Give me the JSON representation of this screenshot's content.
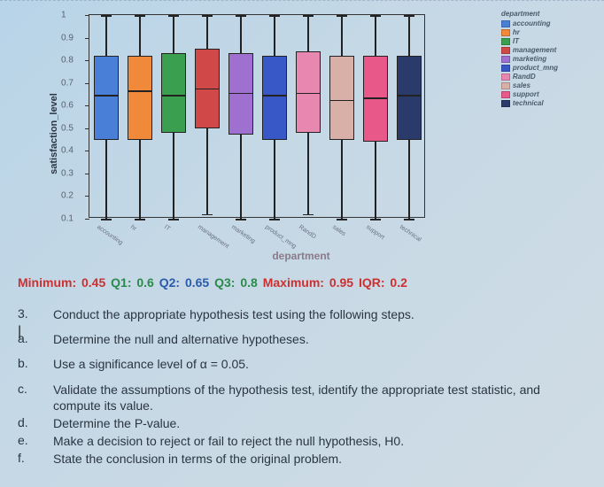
{
  "chart": {
    "type": "boxplot",
    "y_label": "satisfaction_level",
    "x_label": "department",
    "ylim": [
      0.1,
      1.0
    ],
    "yticks": [
      "0.1",
      "0.2",
      "0.3",
      "0.4",
      "0.5",
      "0.6",
      "0.7",
      "0.8",
      "0.9",
      "1"
    ],
    "categories": [
      "accounting",
      "hr",
      "IT",
      "management",
      "marketing",
      "product_mng",
      "RandD",
      "sales",
      "support",
      "technical"
    ],
    "colors": [
      "#4a7fd8",
      "#f08a3a",
      "#3aa050",
      "#d04848",
      "#a070d0",
      "#3858c8",
      "#e888b0",
      "#d8b0a8",
      "#e85888",
      "#2a3a6a"
    ],
    "boxes": [
      {
        "q1": 0.45,
        "q2": 0.65,
        "q3": 0.82,
        "lo": 0.1,
        "hi": 1.0
      },
      {
        "q1": 0.45,
        "q2": 0.67,
        "q3": 0.82,
        "lo": 0.1,
        "hi": 1.0
      },
      {
        "q1": 0.48,
        "q2": 0.65,
        "q3": 0.83,
        "lo": 0.1,
        "hi": 1.0
      },
      {
        "q1": 0.5,
        "q2": 0.68,
        "q3": 0.85,
        "lo": 0.12,
        "hi": 1.0
      },
      {
        "q1": 0.47,
        "q2": 0.66,
        "q3": 0.83,
        "lo": 0.1,
        "hi": 1.0
      },
      {
        "q1": 0.45,
        "q2": 0.65,
        "q3": 0.82,
        "lo": 0.1,
        "hi": 1.0
      },
      {
        "q1": 0.48,
        "q2": 0.66,
        "q3": 0.84,
        "lo": 0.12,
        "hi": 1.0
      },
      {
        "q1": 0.45,
        "q2": 0.63,
        "q3": 0.82,
        "lo": 0.1,
        "hi": 1.0
      },
      {
        "q1": 0.44,
        "q2": 0.64,
        "q3": 0.82,
        "lo": 0.1,
        "hi": 1.0
      },
      {
        "q1": 0.45,
        "q2": 0.65,
        "q3": 0.82,
        "lo": 0.1,
        "hi": 1.0
      }
    ],
    "legend_title": "department",
    "background_color": "#c5d8e5"
  },
  "stats": {
    "min_label": "Minimum:",
    "min_val": "0.45",
    "q1_label": "Q1:",
    "q1_val": "0.6",
    "q2_label": "Q2:",
    "q2_val": "0.65",
    "q3_label": "Q3:",
    "q3_val": "0.8",
    "max_label": "Maximum:",
    "max_val": "0.95",
    "iqr_label": "IQR:",
    "iqr_val": "0.2"
  },
  "question": {
    "num": "3.",
    "text": "Conduct the appropriate hypothesis test using the following steps.",
    "items": [
      {
        "k": "a.",
        "t": "Determine the null and alternative hypotheses."
      },
      {
        "k": "b.",
        "t": "Use a significance level of α = 0.05."
      },
      {
        "k": "c.",
        "t": "Validate the assumptions of the hypothesis test, identify the appropriate test statistic, and compute its value."
      },
      {
        "k": "d.",
        "t": "Determine the P-value."
      },
      {
        "k": "e.",
        "t": "Make a decision to reject or fail to reject the null hypothesis, H0."
      },
      {
        "k": "f.",
        "t": "State the conclusion in terms of the original problem."
      }
    ]
  }
}
